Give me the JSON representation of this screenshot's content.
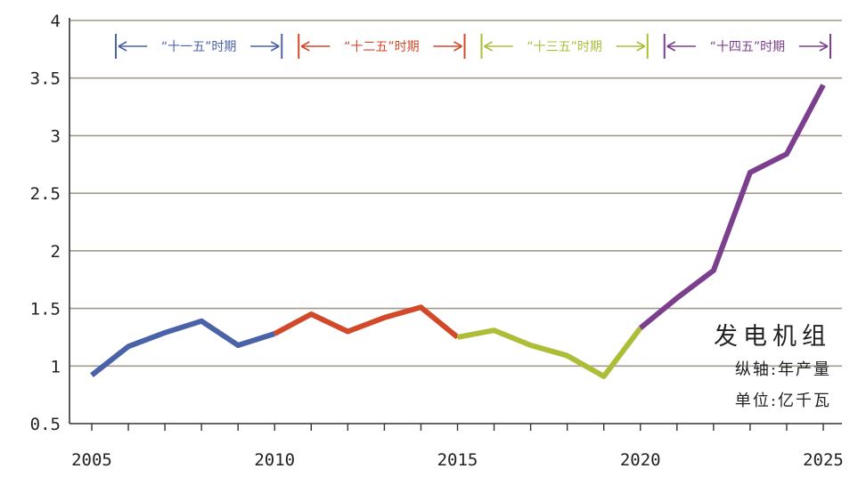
{
  "chart_data": {
    "type": "line",
    "title": "",
    "xlabel": "",
    "ylabel": "",
    "xlim": [
      2005,
      2025
    ],
    "ylim": [
      0.5,
      4
    ],
    "x_ticks": [
      "2005",
      "2010",
      "2015",
      "2020",
      "2025"
    ],
    "y_ticks": [
      "0.5",
      "1",
      "1.5",
      "2",
      "2.5",
      "3",
      "3.5",
      "4"
    ],
    "grid": "horizontal",
    "series": [
      {
        "period": "“十一五”时期",
        "color": "#4a62a8",
        "x": [
          2005,
          2006,
          2007,
          2008,
          2009,
          2010
        ],
        "y": [
          0.92,
          1.17,
          1.29,
          1.39,
          1.18,
          1.28
        ]
      },
      {
        "period": "“十二五”时期",
        "color": "#d2492a",
        "x": [
          2010,
          2011,
          2012,
          2013,
          2014,
          2015
        ],
        "y": [
          1.28,
          1.45,
          1.3,
          1.42,
          1.51,
          1.25
        ]
      },
      {
        "period": "“十三五”时期",
        "color": "#adbd37",
        "x": [
          2015,
          2016,
          2017,
          2018,
          2019,
          2020
        ],
        "y": [
          1.25,
          1.31,
          1.18,
          1.09,
          0.91,
          1.33
        ]
      },
      {
        "period": "“十四五”时期",
        "color": "#7b3f8e",
        "x": [
          2020,
          2021,
          2022,
          2023,
          2024,
          2025
        ],
        "y": [
          1.33,
          1.59,
          1.83,
          2.68,
          2.84,
          3.44
        ]
      }
    ],
    "periods": [
      {
        "label": "“十一五”时期",
        "start": 2005,
        "end": 2010,
        "color": "#4a62a8"
      },
      {
        "label": "“十二五”时期",
        "start": 2010,
        "end": 2015,
        "color": "#d2492a"
      },
      {
        "label": "“十三五”时期",
        "start": 2015,
        "end": 2020,
        "color": "#adbd37"
      },
      {
        "label": "“十四五”时期",
        "start": 2020,
        "end": 2025,
        "color": "#7b3f8e"
      }
    ],
    "annotations": {
      "title": "发电机组",
      "yaxis_note": "纵轴:年产量",
      "unit_note": "单位:亿千瓦"
    }
  },
  "colors": {
    "axis": "#333333",
    "grid": "#a09a8e",
    "text": "#222222"
  }
}
